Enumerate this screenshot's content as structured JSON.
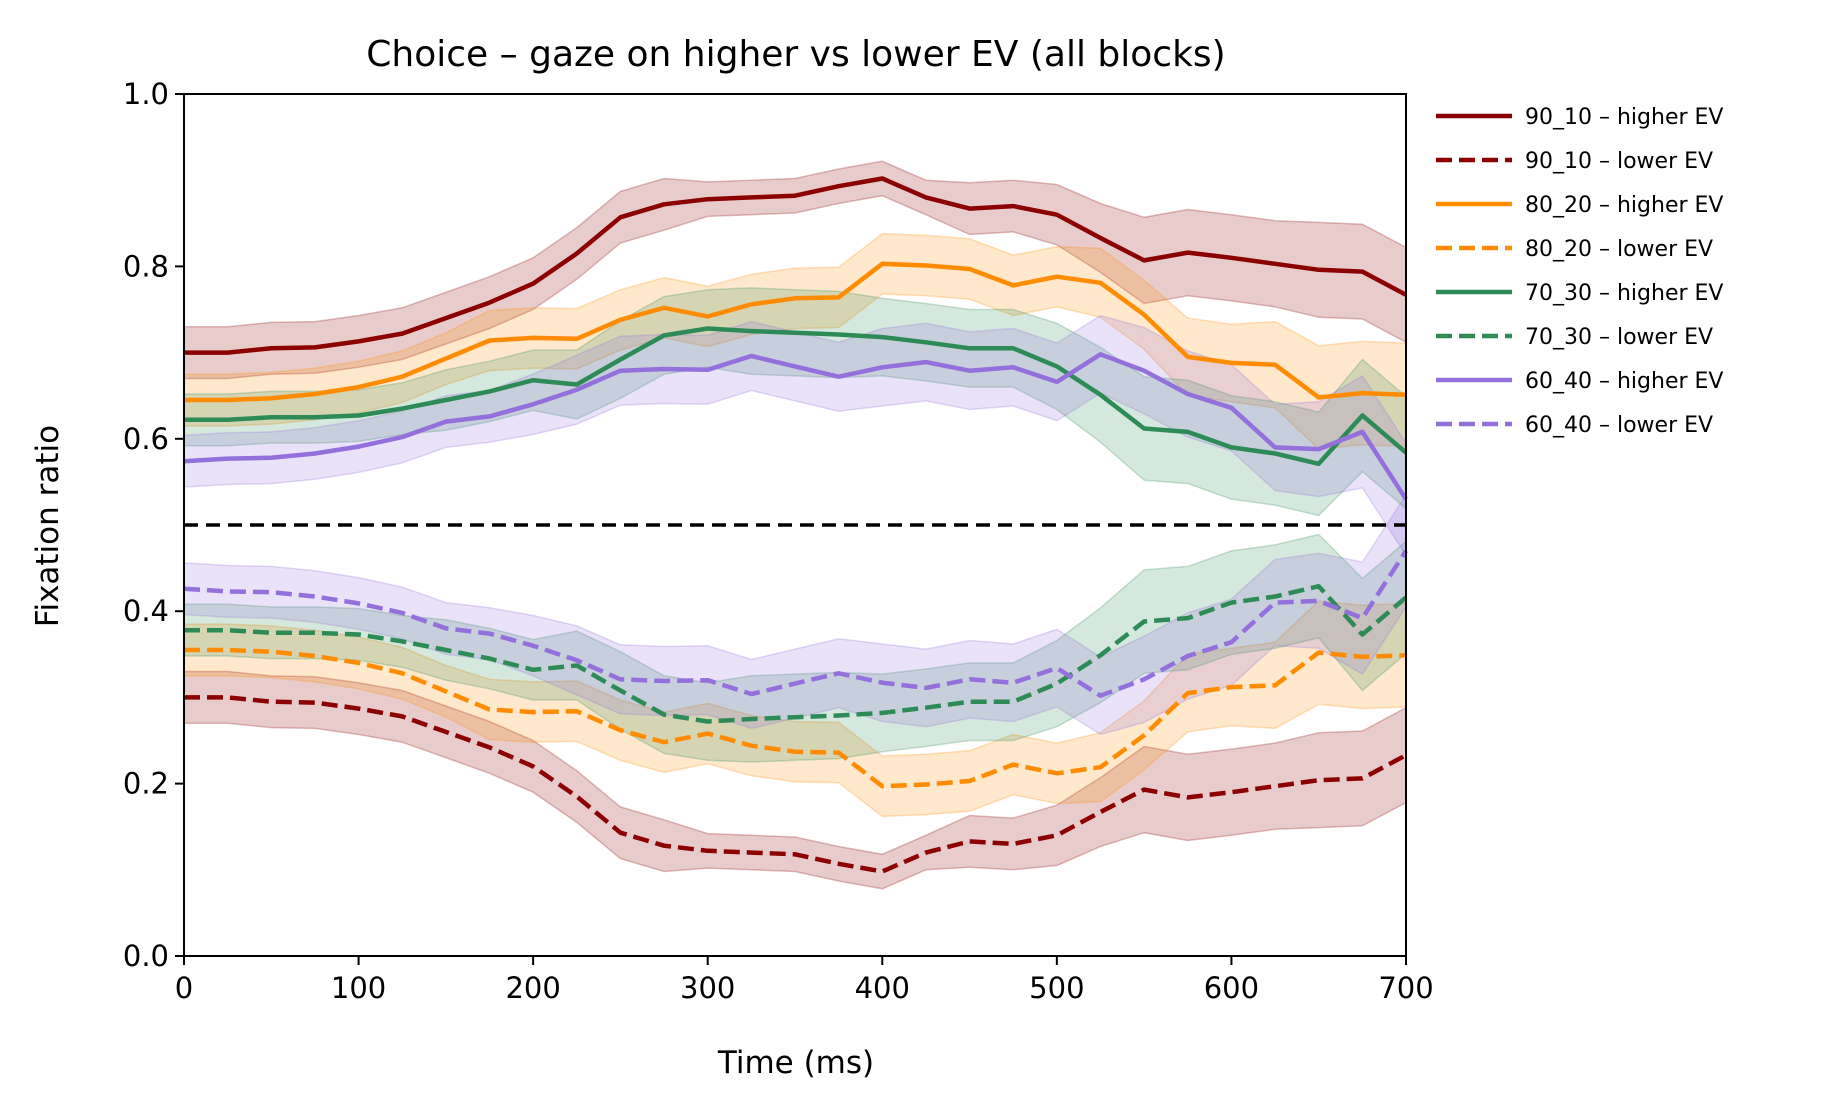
{
  "chart_data": {
    "type": "line",
    "title": "Choice – gaze on higher vs lower EV (all blocks)",
    "xlabel": "Time (ms)",
    "ylabel": "Fixation ratio",
    "xlim": [
      0,
      700
    ],
    "ylim": [
      0.0,
      1.0
    ],
    "xticks": [
      0,
      100,
      200,
      300,
      400,
      500,
      600,
      700
    ],
    "yticks": [
      0.0,
      0.2,
      0.4,
      0.6,
      0.8,
      1.0
    ],
    "xtick_labels": [
      "0",
      "100",
      "200",
      "300",
      "400",
      "500",
      "600",
      "700"
    ],
    "ytick_labels": [
      "0.0",
      "0.2",
      "0.4",
      "0.6",
      "0.8",
      "1.0"
    ],
    "reference_line_y": 0.5,
    "reference_line_x": 0,
    "grid": false,
    "legend_position": "outside-right",
    "x": [
      0,
      25,
      50,
      75,
      100,
      125,
      150,
      175,
      200,
      225,
      250,
      275,
      300,
      325,
      350,
      375,
      400,
      425,
      450,
      475,
      500,
      525,
      550,
      575,
      600,
      625,
      650,
      675,
      700
    ],
    "series": [
      {
        "name": "90_10 – higher EV",
        "color": "#8b0000",
        "dash": "solid",
        "values": [
          0.7,
          0.7,
          0.705,
          0.706,
          0.713,
          0.722,
          0.74,
          0.758,
          0.78,
          0.815,
          0.857,
          0.872,
          0.878,
          0.88,
          0.882,
          0.893,
          0.902,
          0.88,
          0.867,
          0.87,
          0.86,
          0.833,
          0.807,
          0.816,
          0.81,
          0.803,
          0.796,
          0.794,
          0.767
        ],
        "band": [
          0.03,
          0.03,
          0.03,
          0.03,
          0.03,
          0.03,
          0.03,
          0.03,
          0.03,
          0.03,
          0.03,
          0.03,
          0.02,
          0.02,
          0.02,
          0.02,
          0.02,
          0.02,
          0.03,
          0.03,
          0.035,
          0.04,
          0.05,
          0.05,
          0.05,
          0.05,
          0.055,
          0.055,
          0.055
        ]
      },
      {
        "name": "90_10 – lower EV",
        "color": "#8b0000",
        "dash": "dashed",
        "values": [
          0.3,
          0.3,
          0.295,
          0.294,
          0.287,
          0.278,
          0.26,
          0.242,
          0.22,
          0.185,
          0.143,
          0.128,
          0.122,
          0.12,
          0.118,
          0.107,
          0.098,
          0.12,
          0.133,
          0.13,
          0.14,
          0.167,
          0.193,
          0.184,
          0.19,
          0.197,
          0.204,
          0.206,
          0.233
        ],
        "band": [
          0.03,
          0.03,
          0.03,
          0.03,
          0.03,
          0.03,
          0.03,
          0.03,
          0.03,
          0.03,
          0.03,
          0.03,
          0.02,
          0.02,
          0.02,
          0.02,
          0.02,
          0.02,
          0.03,
          0.03,
          0.035,
          0.04,
          0.05,
          0.05,
          0.05,
          0.05,
          0.055,
          0.055,
          0.055
        ]
      },
      {
        "name": "80_20 – higher EV",
        "color": "#ff8c00",
        "dash": "solid",
        "values": [
          0.645,
          0.645,
          0.647,
          0.652,
          0.66,
          0.672,
          0.693,
          0.714,
          0.717,
          0.716,
          0.738,
          0.752,
          0.742,
          0.756,
          0.763,
          0.764,
          0.803,
          0.801,
          0.797,
          0.778,
          0.788,
          0.781,
          0.744,
          0.695,
          0.688,
          0.686,
          0.648,
          0.653,
          0.651
        ],
        "band": [
          0.03,
          0.03,
          0.03,
          0.03,
          0.03,
          0.03,
          0.03,
          0.035,
          0.035,
          0.035,
          0.035,
          0.035,
          0.035,
          0.035,
          0.035,
          0.035,
          0.035,
          0.035,
          0.035,
          0.035,
          0.035,
          0.04,
          0.04,
          0.045,
          0.045,
          0.05,
          0.06,
          0.06,
          0.06
        ]
      },
      {
        "name": "80_20 – lower EV",
        "color": "#ff8c00",
        "dash": "dashed",
        "values": [
          0.355,
          0.355,
          0.353,
          0.348,
          0.34,
          0.328,
          0.307,
          0.286,
          0.283,
          0.284,
          0.262,
          0.248,
          0.258,
          0.244,
          0.237,
          0.236,
          0.197,
          0.199,
          0.203,
          0.222,
          0.212,
          0.219,
          0.256,
          0.305,
          0.312,
          0.314,
          0.352,
          0.347,
          0.349
        ],
        "band": [
          0.03,
          0.03,
          0.03,
          0.03,
          0.03,
          0.03,
          0.03,
          0.035,
          0.035,
          0.035,
          0.035,
          0.035,
          0.035,
          0.035,
          0.035,
          0.035,
          0.035,
          0.035,
          0.035,
          0.035,
          0.035,
          0.04,
          0.04,
          0.045,
          0.045,
          0.05,
          0.06,
          0.06,
          0.06
        ]
      },
      {
        "name": "70_30 – higher EV",
        "color": "#2e8b57",
        "dash": "solid",
        "values": [
          0.622,
          0.622,
          0.625,
          0.625,
          0.627,
          0.635,
          0.645,
          0.655,
          0.668,
          0.663,
          0.692,
          0.72,
          0.728,
          0.725,
          0.723,
          0.721,
          0.718,
          0.712,
          0.705,
          0.705,
          0.684,
          0.651,
          0.612,
          0.608,
          0.59,
          0.583,
          0.571,
          0.627,
          0.584
        ],
        "band": [
          0.03,
          0.03,
          0.03,
          0.03,
          0.03,
          0.03,
          0.035,
          0.035,
          0.035,
          0.04,
          0.045,
          0.045,
          0.045,
          0.05,
          0.05,
          0.05,
          0.045,
          0.045,
          0.045,
          0.045,
          0.05,
          0.055,
          0.06,
          0.06,
          0.06,
          0.06,
          0.06,
          0.065,
          0.065
        ]
      },
      {
        "name": "70_30 – lower EV",
        "color": "#2e8b57",
        "dash": "dashed",
        "values": [
          0.378,
          0.378,
          0.375,
          0.375,
          0.373,
          0.365,
          0.355,
          0.345,
          0.332,
          0.337,
          0.308,
          0.28,
          0.272,
          0.275,
          0.277,
          0.279,
          0.282,
          0.288,
          0.295,
          0.295,
          0.316,
          0.349,
          0.388,
          0.392,
          0.41,
          0.417,
          0.429,
          0.373,
          0.416
        ],
        "band": [
          0.03,
          0.03,
          0.03,
          0.03,
          0.03,
          0.03,
          0.035,
          0.035,
          0.035,
          0.04,
          0.045,
          0.045,
          0.045,
          0.05,
          0.05,
          0.05,
          0.045,
          0.045,
          0.045,
          0.045,
          0.05,
          0.055,
          0.06,
          0.06,
          0.06,
          0.06,
          0.06,
          0.065,
          0.065
        ]
      },
      {
        "name": "60_40 – higher EV",
        "color": "#9370db",
        "dash": "solid",
        "values": [
          0.574,
          0.577,
          0.578,
          0.583,
          0.591,
          0.602,
          0.62,
          0.626,
          0.64,
          0.657,
          0.679,
          0.681,
          0.68,
          0.696,
          0.684,
          0.672,
          0.683,
          0.689,
          0.679,
          0.683,
          0.666,
          0.698,
          0.679,
          0.652,
          0.636,
          0.59,
          0.588,
          0.608,
          0.53
        ],
        "band": [
          0.03,
          0.03,
          0.03,
          0.03,
          0.03,
          0.03,
          0.03,
          0.03,
          0.035,
          0.04,
          0.04,
          0.04,
          0.04,
          0.04,
          0.04,
          0.04,
          0.045,
          0.045,
          0.045,
          0.045,
          0.045,
          0.045,
          0.05,
          0.05,
          0.05,
          0.05,
          0.055,
          0.065,
          0.065
        ]
      },
      {
        "name": "60_40 – lower EV",
        "color": "#9370db",
        "dash": "dashed",
        "values": [
          0.426,
          0.423,
          0.422,
          0.417,
          0.409,
          0.398,
          0.38,
          0.374,
          0.36,
          0.343,
          0.321,
          0.319,
          0.32,
          0.304,
          0.316,
          0.328,
          0.317,
          0.311,
          0.321,
          0.317,
          0.334,
          0.302,
          0.321,
          0.348,
          0.364,
          0.41,
          0.412,
          0.392,
          0.47
        ],
        "band": [
          0.03,
          0.03,
          0.03,
          0.03,
          0.03,
          0.03,
          0.03,
          0.03,
          0.035,
          0.04,
          0.04,
          0.04,
          0.04,
          0.04,
          0.04,
          0.04,
          0.045,
          0.045,
          0.045,
          0.045,
          0.045,
          0.045,
          0.05,
          0.05,
          0.05,
          0.05,
          0.055,
          0.065,
          0.065
        ]
      }
    ]
  }
}
